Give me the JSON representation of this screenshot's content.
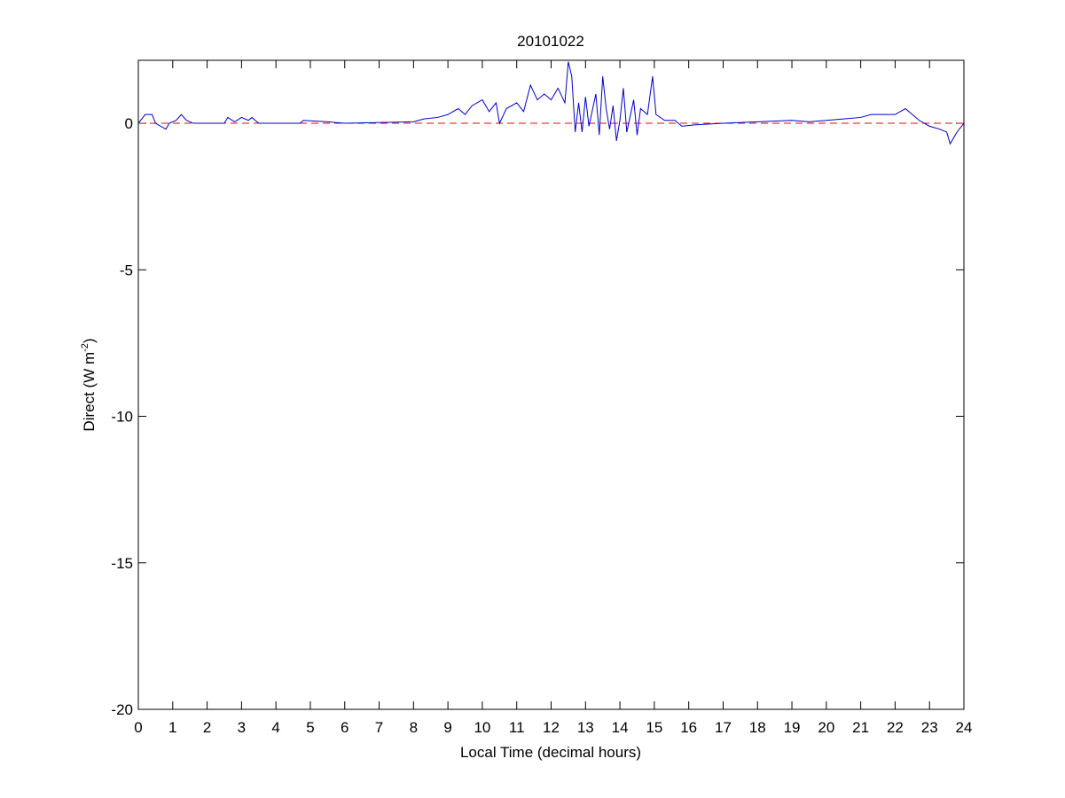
{
  "chart_data": {
    "type": "line",
    "title": "20101022",
    "xlabel": "Local Time (decimal hours)",
    "ylabel": {
      "text": "Direct (W m",
      "superscript": "-2",
      "suffix": ")"
    },
    "x": [
      0,
      0.2,
      0.4,
      0.5,
      0.8,
      0.9,
      1.1,
      1.25,
      1.4,
      1.6,
      2.5,
      2.6,
      2.8,
      3.0,
      3.2,
      3.3,
      3.5,
      4.7,
      4.8,
      5.5,
      6,
      8,
      8.3,
      8.7,
      9,
      9.3,
      9.5,
      9.7,
      10,
      10.2,
      10.4,
      10.5,
      10.7,
      11,
      11.2,
      11.4,
      11.6,
      11.8,
      12,
      12.2,
      12.4,
      12.5,
      12.6,
      12.7,
      12.8,
      12.9,
      13.0,
      13.1,
      13.3,
      13.4,
      13.5,
      13.6,
      13.7,
      13.8,
      13.9,
      14.0,
      14.1,
      14.2,
      14.4,
      14.5,
      14.6,
      14.8,
      14.95,
      15.05,
      15.3,
      15.6,
      15.8,
      16.2,
      17,
      18,
      19,
      19.5,
      20,
      20.5,
      21,
      21.3,
      22,
      22.3,
      22.5,
      22.7,
      23,
      23.3,
      23.5,
      23.6,
      23.8,
      24
    ],
    "series": [
      {
        "name": "Direct",
        "color": "#0000cc",
        "values": [
          0,
          0.3,
          0.3,
          0,
          -0.2,
          0,
          0.1,
          0.3,
          0.1,
          0,
          0,
          0.2,
          0.05,
          0.2,
          0.1,
          0.2,
          0,
          0,
          0.1,
          0.05,
          0,
          0.05,
          0.15,
          0.2,
          0.3,
          0.5,
          0.3,
          0.6,
          0.8,
          0.4,
          0.7,
          0,
          0.5,
          0.7,
          0.4,
          1.3,
          0.8,
          1.0,
          0.8,
          1.2,
          0.7,
          2.1,
          1.6,
          -0.3,
          0.7,
          -0.3,
          0.9,
          -0.1,
          1.0,
          -0.4,
          1.6,
          0.5,
          -0.2,
          0.6,
          -0.6,
          0.1,
          1.2,
          -0.3,
          0.8,
          -0.4,
          0.5,
          0.3,
          1.6,
          0.3,
          0.1,
          0.1,
          -0.1,
          -0.05,
          0,
          0.05,
          0.1,
          0.05,
          0.1,
          0.15,
          0.2,
          0.3,
          0.3,
          0.5,
          0.3,
          0.1,
          -0.1,
          -0.2,
          -0.3,
          -0.7,
          -0.3,
          0
        ]
      }
    ],
    "reference_line": {
      "value": 0,
      "color": "#ff0000"
    },
    "xlim": [
      0,
      24
    ],
    "xticks": [
      0,
      1,
      2,
      3,
      4,
      5,
      6,
      7,
      8,
      9,
      10,
      11,
      12,
      13,
      14,
      15,
      16,
      17,
      18,
      19,
      20,
      21,
      22,
      23,
      24
    ],
    "ylim": [
      -20,
      2.15
    ],
    "yticks": [
      -20,
      -15,
      -10,
      -5,
      0
    ]
  }
}
